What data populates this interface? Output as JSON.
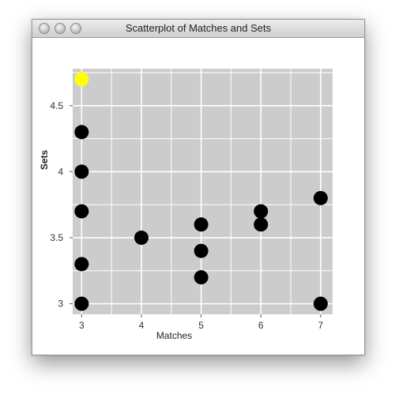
{
  "window": {
    "title": "Scatterplot of Matches and Sets"
  },
  "chart_data": {
    "type": "scatter",
    "title": "",
    "xlabel": "Matches",
    "ylabel": "Sets",
    "xlim": [
      2.85,
      7.2
    ],
    "ylim": [
      2.92,
      4.78
    ],
    "xticks": [
      "3",
      "4",
      "5",
      "6",
      "7"
    ],
    "yticks": [
      "3",
      "3.5",
      "4",
      "4.5"
    ],
    "grid": true,
    "legend": "none",
    "colors": {
      "plot_bg": "#cccccc",
      "grid": "#ffffff",
      "point": "#000000",
      "highlight": "#ffff00"
    },
    "points": [
      {
        "x": 3,
        "y": 4.7,
        "highlight": true
      },
      {
        "x": 3,
        "y": 4.3
      },
      {
        "x": 3,
        "y": 4.0
      },
      {
        "x": 3,
        "y": 3.7
      },
      {
        "x": 3,
        "y": 3.3
      },
      {
        "x": 3,
        "y": 3.0
      },
      {
        "x": 4,
        "y": 3.5
      },
      {
        "x": 5,
        "y": 3.6
      },
      {
        "x": 5,
        "y": 3.4
      },
      {
        "x": 5,
        "y": 3.2
      },
      {
        "x": 6,
        "y": 3.7
      },
      {
        "x": 6,
        "y": 3.6
      },
      {
        "x": 7,
        "y": 3.8
      },
      {
        "x": 7,
        "y": 3.0
      }
    ]
  }
}
